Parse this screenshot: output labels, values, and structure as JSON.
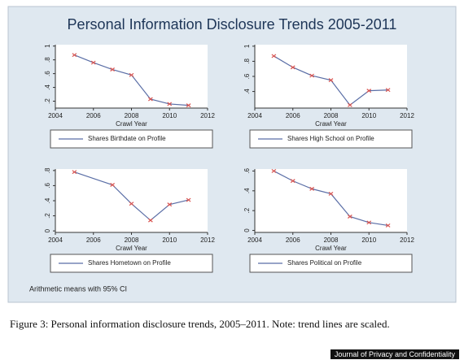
{
  "title": "Personal Information Disclosure Trends 2005-2011",
  "chart_data": [
    {
      "type": "line",
      "xlabel": "Crawl Year",
      "x": [
        2005,
        2006,
        2007,
        2008,
        2009,
        2010,
        2011
      ],
      "series": [
        {
          "name": "Shares Birthdate on Profile",
          "color": "#5a6ea6",
          "marker_color": "#d9534f",
          "values": [
            0.87,
            0.76,
            0.66,
            0.58,
            0.23,
            0.16,
            0.14
          ]
        }
      ],
      "xlim": [
        2004,
        2012
      ],
      "xticks": [
        2004,
        2006,
        2008,
        2010,
        2012
      ],
      "ylim": [
        0.1,
        1.02
      ],
      "yticks": [
        {
          "value": 0.2,
          "label": ".2"
        },
        {
          "value": 0.4,
          "label": ".4"
        },
        {
          "value": 0.6,
          "label": ".6"
        },
        {
          "value": 0.8,
          "label": ".8"
        },
        1
      ]
    },
    {
      "type": "line",
      "xlabel": "Crawl Year",
      "x": [
        2005,
        2006,
        2007,
        2008,
        2009,
        2010,
        2011
      ],
      "series": [
        {
          "name": "Shares High School on Profile",
          "color": "#5a6ea6",
          "marker_color": "#d9534f",
          "values": [
            0.87,
            0.72,
            0.61,
            0.55,
            0.22,
            0.41,
            0.42
          ]
        }
      ],
      "xlim": [
        2004,
        2012
      ],
      "xticks": [
        2004,
        2006,
        2008,
        2010,
        2012
      ],
      "ylim": [
        0.18,
        1.02
      ],
      "yticks": [
        {
          "value": 0.4,
          "label": ".4"
        },
        {
          "value": 0.6,
          "label": ".6"
        },
        {
          "value": 0.8,
          "label": ".8"
        },
        1
      ]
    },
    {
      "type": "line",
      "xlabel": "Crawl Year",
      "x": [
        2005,
        2007,
        2008,
        2009,
        2010,
        2011
      ],
      "series": [
        {
          "name": "Shares Hometown on Profile",
          "color": "#5a6ea6",
          "marker_color": "#d9534f",
          "values": [
            0.78,
            0.61,
            0.36,
            0.14,
            0.35,
            0.41
          ]
        }
      ],
      "xlim": [
        2004,
        2012
      ],
      "xticks": [
        2004,
        2006,
        2008,
        2010,
        2012
      ],
      "ylim": [
        -0.02,
        0.82
      ],
      "yticks": [
        0,
        {
          "value": 0.2,
          "label": ".2"
        },
        {
          "value": 0.4,
          "label": ".4"
        },
        {
          "value": 0.6,
          "label": ".6"
        },
        {
          "value": 0.8,
          "label": ".8"
        }
      ]
    },
    {
      "type": "line",
      "xlabel": "Crawl Year",
      "x": [
        2005,
        2006,
        2007,
        2008,
        2009,
        2010,
        2011
      ],
      "series": [
        {
          "name": "Shares Political on Profile",
          "color": "#5a6ea6",
          "marker_color": "#d9534f",
          "values": [
            0.6,
            0.5,
            0.42,
            0.37,
            0.14,
            0.08,
            0.05
          ]
        }
      ],
      "xlim": [
        2004,
        2012
      ],
      "xticks": [
        2004,
        2006,
        2008,
        2010,
        2012
      ],
      "ylim": [
        -0.02,
        0.62
      ],
      "yticks": [
        0,
        {
          "value": 0.2,
          "label": ".2"
        },
        {
          "value": 0.4,
          "label": ".4"
        },
        {
          "value": 0.6,
          "label": ".6"
        }
      ]
    }
  ],
  "note": "Arithmetic means with 95% CI",
  "caption": "Figure 3: Personal information disclosure trends, 2005–2011. Note: trend lines are scaled.",
  "source": "Journal of Privacy and Confidentiality"
}
